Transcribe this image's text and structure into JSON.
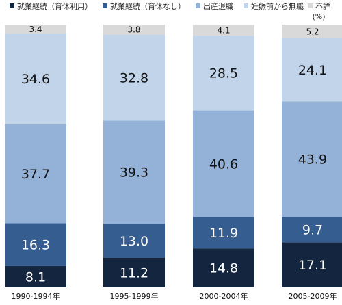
{
  "chart_data": {
    "type": "bar",
    "stacked": true,
    "orientation": "vertical",
    "unit": "(%)",
    "categories": [
      "1990-1994年",
      "1995-1999年",
      "2000-2004年",
      "2005-2009年"
    ],
    "series": [
      {
        "name": "就業継続（育休利用）",
        "color": "#14263f",
        "values": [
          8.1,
          11.2,
          14.8,
          17.1
        ]
      },
      {
        "name": "就業継続（育休なし）",
        "color": "#355d90",
        "values": [
          16.3,
          13.0,
          11.9,
          9.7
        ]
      },
      {
        "name": "出産退職",
        "color": "#94b2d8",
        "values": [
          37.7,
          39.3,
          40.6,
          43.9
        ]
      },
      {
        "name": "妊娠前から無職",
        "color": "#c1d4ea",
        "values": [
          34.6,
          32.8,
          28.5,
          24.1
        ]
      },
      {
        "name": "不詳",
        "color": "#d9d9d9",
        "values": [
          3.4,
          3.8,
          4.1,
          5.2
        ]
      }
    ],
    "value_labels": [
      [
        "8.1",
        "16.3",
        "37.7",
        "34.6",
        "3.4"
      ],
      [
        "11.2",
        "13.0",
        "39.3",
        "32.8",
        "3.8"
      ],
      [
        "14.8",
        "11.9",
        "40.6",
        "28.5",
        "4.1"
      ],
      [
        "17.1",
        "9.7",
        "43.9",
        "24.1",
        "5.2"
      ]
    ],
    "label_colors": [
      "#ffffff",
      "#ffffff",
      "#111111",
      "#111111",
      "#111111"
    ],
    "ylim": [
      0,
      100
    ],
    "grid": false,
    "legend_position": "top"
  }
}
